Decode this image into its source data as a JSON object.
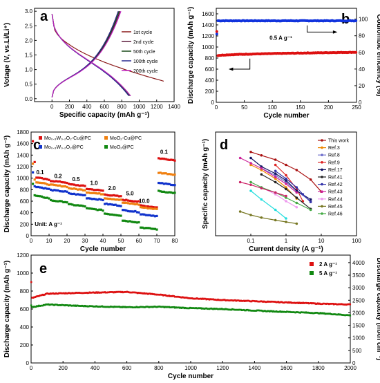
{
  "chart_data": [
    {
      "panel": "a",
      "type": "line",
      "xlabel": "Specific capacity (mAh g⁻¹)",
      "ylabel": "Votage (V, vs.Li/Li⁺)",
      "xlim": [
        -200,
        1400
      ],
      "ylim": [
        -0.1,
        3.1
      ],
      "xticks": [
        "0",
        "200",
        "400",
        "600",
        "800",
        "1000",
        "1200",
        "1400"
      ],
      "yticks": [
        "0.0",
        "0.5",
        "1.0",
        "1.5",
        "2.0",
        "2.5",
        "3.0"
      ],
      "legend_position": "right",
      "series": [
        {
          "name": "1st cycle",
          "color": "#8b1a1a",
          "discharge_end": 1280,
          "charge_end": 760
        },
        {
          "name": "2nd cycle",
          "color": "#5a1a3a",
          "discharge_end": 900,
          "charge_end": 780
        },
        {
          "name": "50th cycle",
          "color": "#1a4a1a",
          "discharge_end": 890,
          "charge_end": 770
        },
        {
          "name": "100th cycle",
          "color": "#2a2a90",
          "discharge_end": 880,
          "charge_end": 760
        },
        {
          "name": "200th cycle",
          "color": "#c020c0",
          "discharge_end": 900,
          "charge_end": 790
        }
      ]
    },
    {
      "panel": "b",
      "type": "scatter",
      "xlabel": "Cycle number",
      "ylabel": "Discharge capacity (mAh g⁻¹)",
      "y2label": "Coulombic efficiency (%)",
      "xlim": [
        0,
        250
      ],
      "ylim": [
        0,
        1700
      ],
      "y2lim": [
        0,
        113
      ],
      "xticks": [
        "0",
        "50",
        "100",
        "150",
        "200",
        "250"
      ],
      "yticks": [
        "0",
        "200",
        "400",
        "600",
        "800",
        "1000",
        "1200",
        "1400",
        "1600"
      ],
      "y2ticks": [
        "0",
        "20",
        "40",
        "60",
        "80",
        "100"
      ],
      "annotation": "0.5 A g⁻¹",
      "capacity": {
        "first": 1280,
        "start": 840,
        "end": 905,
        "color": "#dd1111"
      },
      "efficiency": {
        "first": 82,
        "value": 98,
        "color": "#1133dd"
      }
    },
    {
      "panel": "c",
      "type": "scatter",
      "xlabel": "Cycle number",
      "ylabel": "Discharge capacity (mAh g⁻¹)",
      "xlim": [
        0,
        80
      ],
      "ylim": [
        0,
        1800
      ],
      "xticks": [
        "0",
        "10",
        "20",
        "30",
        "40",
        "50",
        "60",
        "70",
        "80"
      ],
      "yticks": [
        "0",
        "200",
        "400",
        "600",
        "800",
        "1000",
        "1200",
        "1400",
        "1600",
        "1800"
      ],
      "unit_label": "Unit: A g⁻¹",
      "rates": [
        "0.1",
        "0.2",
        "0.5",
        "1.0",
        "2.0",
        "5.0",
        "10.0",
        "0.1"
      ],
      "series": [
        {
          "name": "Mo₀.₈W₀.₂O₂-Cu@PC",
          "color": "#dd1111",
          "levels": [
            1000,
            940,
            880,
            800,
            700,
            610,
            510,
            1330
          ],
          "first": 1640
        },
        {
          "name": "MoO₂-Cu@PC",
          "color": "#f08010",
          "levels": [
            920,
            870,
            810,
            740,
            640,
            560,
            480,
            1080
          ],
          "first": 1250
        },
        {
          "name": "Mo₀.₈W₀.₂O₂@PC",
          "color": "#1133cc",
          "levels": [
            840,
            780,
            720,
            640,
            540,
            430,
            360,
            900
          ],
          "first": 1100
        },
        {
          "name": "MoO₂@PC",
          "color": "#118811",
          "levels": [
            680,
            600,
            530,
            460,
            370,
            250,
            130,
            760
          ],
          "first": 900
        }
      ]
    },
    {
      "panel": "d",
      "type": "line",
      "xlabel": "Current density (A g⁻¹)",
      "ylabel": "Specific capacity (mAh g⁻¹)",
      "xscale": "log",
      "xlim": [
        0.01,
        100
      ],
      "ylim": [
        0,
        1200
      ],
      "xticks": [
        "0.1",
        "1",
        "10",
        "100"
      ],
      "yticks": [],
      "series": [
        {
          "name": "This work",
          "color": "#aa1111",
          "x": [
            0.1,
            0.2,
            0.5,
            1,
            2,
            5,
            10
          ],
          "y": [
            970,
            930,
            880,
            820,
            760,
            650,
            510
          ]
        },
        {
          "name": "Ref.3",
          "color": "#ee8800",
          "x": [
            0.1,
            0.2,
            0.5,
            1,
            2
          ],
          "y": [
            820,
            760,
            660,
            560,
            430
          ]
        },
        {
          "name": "Ref.8",
          "color": "#7070cc",
          "x": [
            0.2,
            0.5,
            1,
            2,
            5
          ],
          "y": [
            780,
            700,
            620,
            520,
            400
          ]
        },
        {
          "name": "Ref.9",
          "color": "#dd2222",
          "x": [
            0.5,
            1,
            2,
            3
          ],
          "y": [
            820,
            700,
            540,
            400
          ]
        },
        {
          "name": "Ref.17",
          "color": "#101060",
          "x": [
            0.1,
            0.2,
            0.5,
            1,
            2,
            5
          ],
          "y": [
            900,
            800,
            720,
            640,
            520,
            420
          ]
        },
        {
          "name": "Ref.41",
          "color": "#222222",
          "x": [
            0.2,
            0.5,
            1,
            2,
            5
          ],
          "y": [
            710,
            620,
            540,
            440,
            310
          ]
        },
        {
          "name": "Ref.42",
          "color": "#3333aa",
          "x": [
            0.5,
            1,
            2,
            3,
            5
          ],
          "y": [
            750,
            660,
            560,
            480,
            390
          ]
        },
        {
          "name": "Ref.43",
          "color": "#cc2299",
          "x": [
            0.05,
            0.1,
            0.2,
            0.5,
            1,
            2
          ],
          "y": [
            900,
            840,
            780,
            680,
            600,
            500
          ]
        },
        {
          "name": "Ref.44",
          "color": "#ee99ee",
          "x": [
            0.1,
            0.2,
            0.5,
            1,
            2
          ],
          "y": [
            620,
            560,
            480,
            400,
            330
          ]
        },
        {
          "name": "Ref.45",
          "color": "#777722",
          "x": [
            0.05,
            0.1,
            0.2,
            0.5,
            1,
            2
          ],
          "y": [
            280,
            240,
            210,
            180,
            160,
            140
          ]
        },
        {
          "name": "Ref.46",
          "color": "#44aa44",
          "x": [
            0.1,
            0.2,
            0.5,
            1,
            2,
            5
          ],
          "y": [
            620,
            560,
            500,
            440,
            380,
            300
          ]
        },
        {
          "name": "",
          "color": "#22dddd",
          "x": [
            0.1,
            0.2,
            0.5,
            1
          ],
          "y": [
            520,
            420,
            300,
            200
          ]
        },
        {
          "name": "",
          "color": "#cc2266",
          "x": [
            0.05,
            0.1,
            0.2,
            0.5,
            1
          ],
          "y": [
            620,
            590,
            550,
            500,
            460
          ]
        }
      ]
    },
    {
      "panel": "e",
      "type": "scatter",
      "xlabel": "Cycle number",
      "ylabel": "Discharge capacity (mAh g⁻¹)",
      "y2label": "Discharge capacity (mAh cm⁻³)",
      "xlim": [
        0,
        2000
      ],
      "ylim": [
        0,
        1200
      ],
      "y2lim": [
        0,
        4300
      ],
      "xticks": [
        "0",
        "200",
        "400",
        "600",
        "800",
        "1000",
        "1200",
        "1400",
        "1600",
        "1800",
        "2000"
      ],
      "yticks": [
        "0",
        "200",
        "400",
        "600",
        "800",
        "1000",
        "1200"
      ],
      "y2ticks": [
        "0",
        "500",
        "1000",
        "1500",
        "2000",
        "2500",
        "3000",
        "3500",
        "4000"
      ],
      "legend_position": "top-right",
      "series": [
        {
          "name": "2 A g⁻¹",
          "color": "#dd1111",
          "first": 900,
          "points": [
            [
              0,
              720
            ],
            [
              100,
              770
            ],
            [
              300,
              780
            ],
            [
              600,
              790
            ],
            [
              800,
              760
            ],
            [
              1000,
              720
            ],
            [
              1200,
              700
            ],
            [
              1500,
              680
            ],
            [
              1800,
              660
            ],
            [
              2000,
              650
            ]
          ]
        },
        {
          "name": "5 A g⁻¹",
          "color": "#118811",
          "first": 640,
          "points": [
            [
              0,
              620
            ],
            [
              100,
              650
            ],
            [
              300,
              635
            ],
            [
              600,
              620
            ],
            [
              800,
              625
            ],
            [
              1000,
              610
            ],
            [
              1200,
              600
            ],
            [
              1500,
              575
            ],
            [
              1800,
              555
            ],
            [
              2000,
              530
            ]
          ]
        }
      ]
    }
  ]
}
